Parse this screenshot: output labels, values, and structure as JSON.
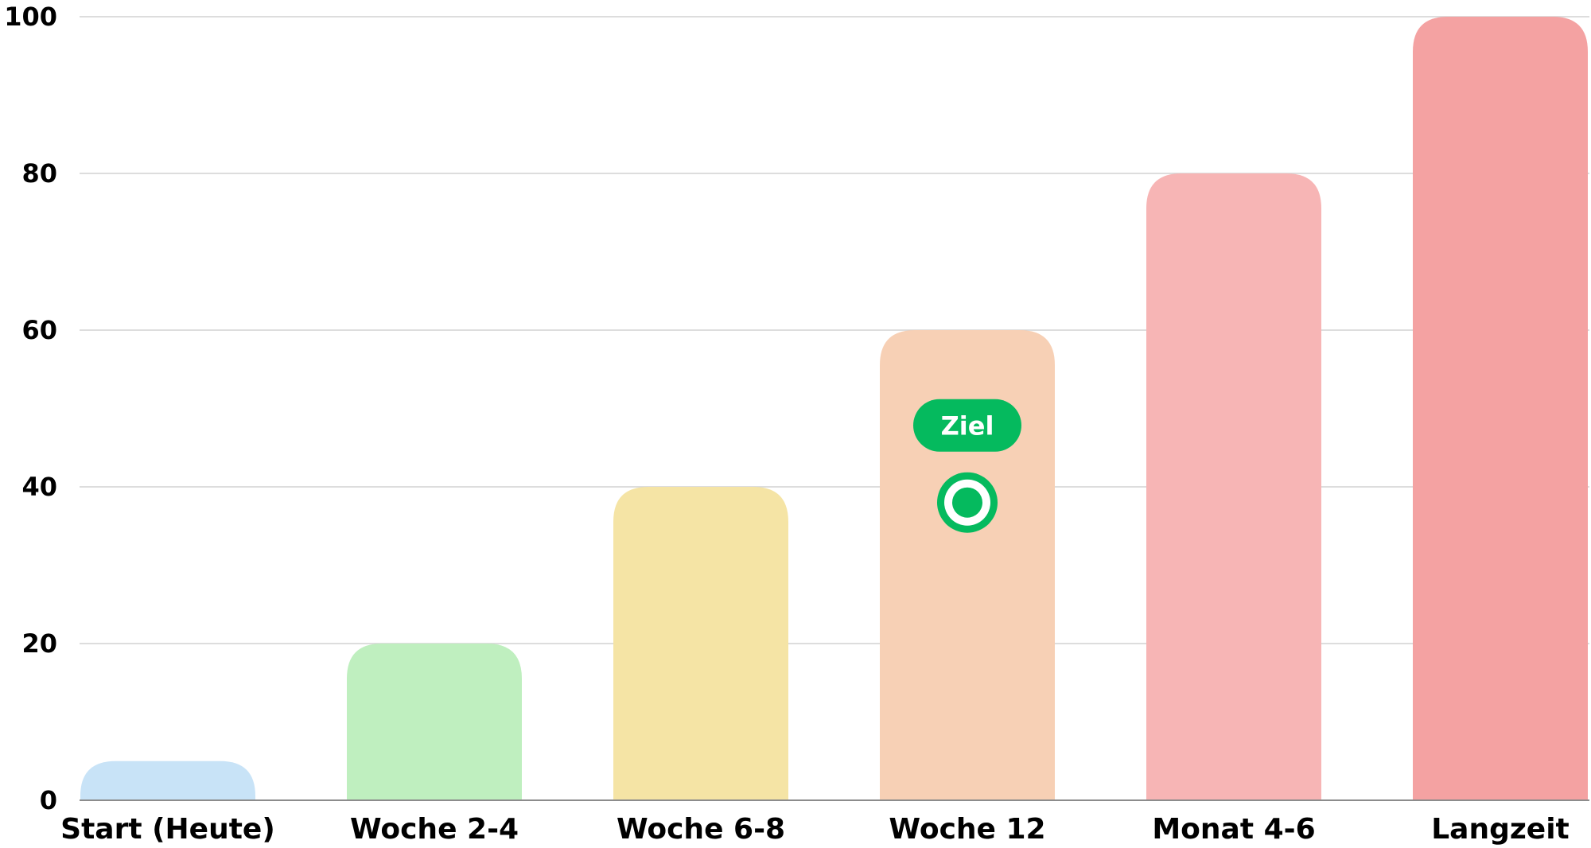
{
  "chart_data": {
    "type": "bar",
    "title": "",
    "xlabel": "",
    "ylabel": "",
    "categories": [
      "Start (Heute)",
      "Woche 2-4",
      "Woche 6-8",
      "Woche 12",
      "Monat 4-6",
      "Langzeit"
    ],
    "values": [
      5,
      20,
      40,
      60,
      80,
      100
    ],
    "colors": [
      "#c8e3f7",
      "#bfefbf",
      "#f5e4a5",
      "#f7d0b5",
      "#f7b5b5",
      "#f4a2a2"
    ],
    "ylim": [
      0,
      100
    ],
    "yticks": [
      0,
      20,
      40,
      60,
      80,
      100
    ],
    "grid": true,
    "annotation": {
      "label": "Ziel",
      "category": "Woche 12",
      "value": 38,
      "color": "#05ba5e",
      "icon": "target-icon"
    }
  }
}
